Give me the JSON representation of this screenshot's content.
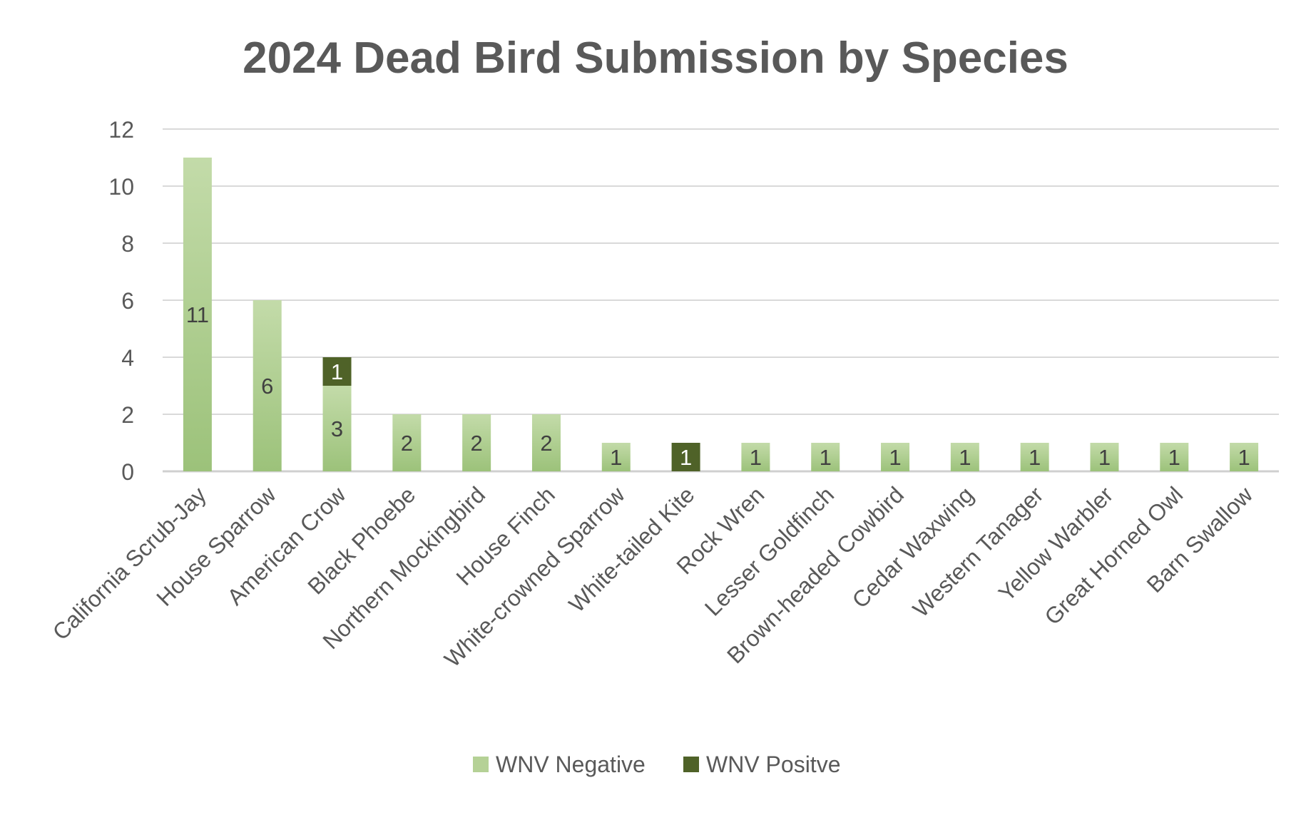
{
  "chart_data": {
    "type": "bar",
    "stacked": true,
    "title": "2024 Dead Bird Submission by Species",
    "xlabel": "",
    "ylabel": "",
    "ylim": [
      0,
      12
    ],
    "yticks": [
      0,
      2,
      4,
      6,
      8,
      10,
      12
    ],
    "grid": true,
    "legend_position": "bottom",
    "categories": [
      "California Scrub-Jay",
      "House Sparrow",
      "American Crow",
      "Black Phoebe",
      "Northern Mockingbird",
      "House Finch",
      "White-crowned Sparrow",
      "White-tailed Kite",
      "Rock Wren",
      "Lesser Goldfinch",
      "Brown-headed Cowbird",
      "Cedar Waxwing",
      "Western Tanager",
      "Yellow Warbler",
      "Great Horned Owl",
      "Barn Swallow"
    ],
    "series": [
      {
        "name": "WNV Negative",
        "color": "#a9c98a",
        "label_color": "#404040",
        "values": [
          11,
          6,
          3,
          2,
          2,
          2,
          1,
          null,
          1,
          1,
          1,
          1,
          1,
          1,
          1,
          1
        ]
      },
      {
        "name": "WNV Positve",
        "color": "#4f6228",
        "label_color": "#ffffff",
        "values": [
          null,
          null,
          1,
          null,
          null,
          null,
          null,
          1,
          null,
          null,
          null,
          null,
          null,
          null,
          null,
          null
        ]
      }
    ]
  }
}
